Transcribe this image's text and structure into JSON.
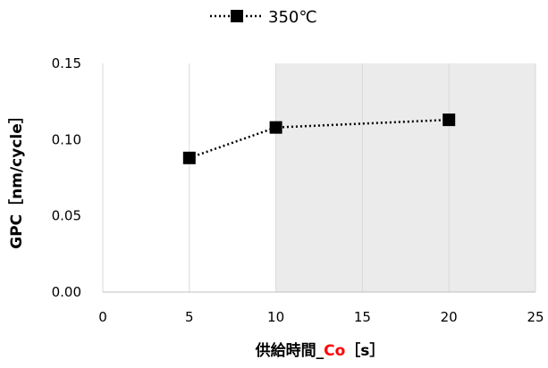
{
  "chart_data": {
    "type": "scatter",
    "title": "",
    "legend": {
      "position": "top",
      "entries": [
        "350℃"
      ]
    },
    "series": [
      {
        "name": "350℃",
        "x": [
          5,
          10,
          20
        ],
        "y": [
          0.088,
          0.108,
          0.113
        ],
        "color": "#000000",
        "line_style": "dotted",
        "marker": "square"
      }
    ],
    "xlabel": {
      "text": "供給時間_",
      "highlight": "Co",
      "suffix": "［s］",
      "highlight_color": "#ff0000"
    },
    "ylabel": "GPC［nm/cycle］",
    "xlim": [
      0,
      25
    ],
    "ylim": [
      0,
      0.15
    ],
    "xticks": [
      "0",
      "5",
      "10",
      "15",
      "20",
      "25"
    ],
    "yticks": [
      "0.00",
      "0.05",
      "0.10",
      "0.15"
    ],
    "shaded_region": {
      "x_from": 10,
      "x_to": 25,
      "color": "#ebebeb"
    },
    "grid": {
      "vertical": true,
      "horizontal": false,
      "color": "#d9d9d9"
    }
  }
}
